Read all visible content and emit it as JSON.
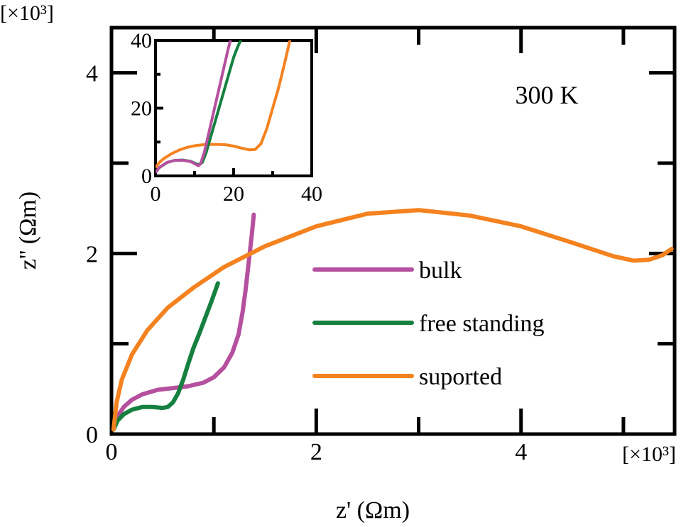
{
  "chart_data": {
    "type": "line",
    "title": "",
    "annotation": "300 K",
    "xlabel": "z' (Ωm)",
    "ylabel": "z'' (Ωm)",
    "x_multiplier": "[×10³]",
    "y_multiplier": "[×10³]",
    "xlim": [
      0,
      5.5
    ],
    "ylim": [
      0,
      4.5
    ],
    "xticks": [
      0,
      2,
      4
    ],
    "xtick_labels": [
      "0",
      "2",
      "4"
    ],
    "yticks": [
      0,
      2,
      4
    ],
    "ytick_labels": [
      "0",
      "2",
      "4"
    ],
    "legend": {
      "placement": "center-right",
      "entries": [
        "bulk",
        "free standing",
        "suported"
      ]
    },
    "series": [
      {
        "name": "bulk",
        "color": "#b5509f",
        "x": [
          0.02,
          0.06,
          0.12,
          0.2,
          0.3,
          0.45,
          0.6,
          0.75,
          0.9,
          1.0,
          1.1,
          1.18,
          1.24,
          1.28,
          1.31,
          1.34,
          1.37,
          1.39
        ],
        "y": [
          0.05,
          0.2,
          0.3,
          0.38,
          0.44,
          0.49,
          0.51,
          0.53,
          0.57,
          0.63,
          0.74,
          0.9,
          1.1,
          1.35,
          1.6,
          1.9,
          2.2,
          2.43
        ]
      },
      {
        "name": "free standing",
        "color": "#15803f",
        "x": [
          0.02,
          0.06,
          0.12,
          0.2,
          0.3,
          0.4,
          0.5,
          0.55,
          0.6,
          0.65,
          0.7,
          0.75,
          0.8,
          0.86,
          0.92,
          0.98,
          1.04
        ],
        "y": [
          0.05,
          0.15,
          0.22,
          0.27,
          0.3,
          0.3,
          0.29,
          0.3,
          0.35,
          0.45,
          0.6,
          0.78,
          0.95,
          1.12,
          1.3,
          1.48,
          1.67
        ]
      },
      {
        "name": "suported",
        "color": "#f4821f",
        "x": [
          0.02,
          0.05,
          0.1,
          0.2,
          0.35,
          0.55,
          0.8,
          1.1,
          1.5,
          2.0,
          2.5,
          3.0,
          3.5,
          4.0,
          4.5,
          4.9,
          5.1,
          5.25,
          5.38,
          5.47
        ],
        "y": [
          0.05,
          0.35,
          0.6,
          0.88,
          1.15,
          1.4,
          1.62,
          1.85,
          2.08,
          2.3,
          2.44,
          2.48,
          2.42,
          2.3,
          2.12,
          1.97,
          1.92,
          1.93,
          1.98,
          2.05
        ]
      }
    ],
    "inset": {
      "xlim": [
        0,
        40
      ],
      "ylim": [
        0,
        40
      ],
      "xticks": [
        0,
        20,
        40
      ],
      "xtick_labels": [
        "0",
        "20",
        "40"
      ],
      "yticks": [
        0,
        20,
        40
      ],
      "ytick_labels": [
        "0",
        "20",
        "40"
      ],
      "series": [
        {
          "name": "bulk",
          "color": "#b5509f",
          "x": [
            0,
            1,
            3,
            5,
            7,
            9,
            11,
            11.5,
            12.5,
            13.5,
            14.5,
            15.5,
            16.5,
            17.5,
            18.5,
            19.3
          ],
          "y": [
            1,
            2.5,
            4,
            4.6,
            4.6,
            4.2,
            3,
            3.5,
            7,
            12,
            17,
            22,
            27,
            32,
            37,
            40.5
          ]
        },
        {
          "name": "free standing",
          "color": "#15803f",
          "x": [
            0,
            1,
            3,
            5,
            7,
            9,
            11,
            12,
            13,
            14,
            15,
            16,
            17,
            18,
            19,
            20,
            21,
            22
          ],
          "y": [
            1,
            2.5,
            4,
            4.6,
            4.7,
            4.3,
            3.3,
            4,
            7,
            11,
            15,
            19,
            23,
            27,
            31,
            35,
            38,
            40.5
          ]
        },
        {
          "name": "suported",
          "color": "#f4821f",
          "x": [
            0,
            1,
            2,
            4,
            6,
            8,
            10,
            12,
            14,
            16,
            18,
            20,
            22,
            24,
            25.5,
            27,
            28.5,
            30,
            31.5,
            33,
            34.5
          ],
          "y": [
            2.5,
            4,
            5,
            6.5,
            7.6,
            8.4,
            8.9,
            9.2,
            9.3,
            9.3,
            9.2,
            8.8,
            8.2,
            7.7,
            7.8,
            9.5,
            14,
            20,
            26,
            33,
            40.5
          ]
        }
      ]
    }
  }
}
